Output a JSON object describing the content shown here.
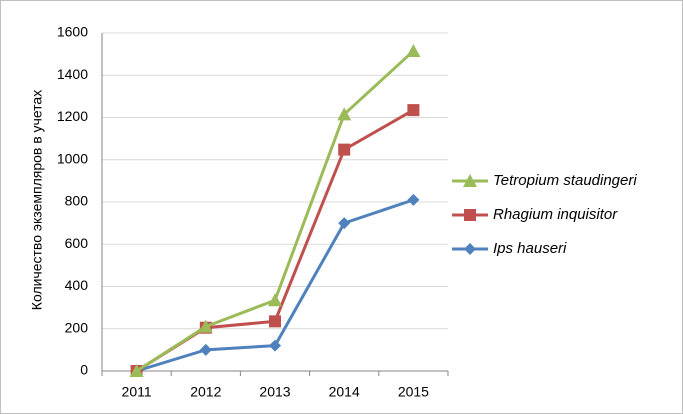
{
  "chart_data": {
    "type": "line",
    "y_label": "Количество экземпляров в учетах",
    "categories": [
      "2011",
      "2012",
      "2013",
      "2014",
      "2015"
    ],
    "series": [
      {
        "name": "Tetropium staudingeri",
        "color": "#9bbb59",
        "marker": "triangle",
        "values": [
          0,
          210,
          335,
          1215,
          1515
        ]
      },
      {
        "name": "Rhagium inquisitor",
        "color": "#c0504d",
        "marker": "square",
        "values": [
          0,
          205,
          235,
          1048,
          1235
        ]
      },
      {
        "name": "Ips hauseri",
        "color": "#4f81bd",
        "marker": "diamond",
        "values": [
          0,
          100,
          120,
          700,
          810
        ]
      }
    ],
    "ylim": [
      0,
      1600
    ],
    "yticks": [
      0,
      200,
      400,
      600,
      800,
      1000,
      1200,
      1400,
      1600
    ],
    "grid": true,
    "legend": "right"
  }
}
